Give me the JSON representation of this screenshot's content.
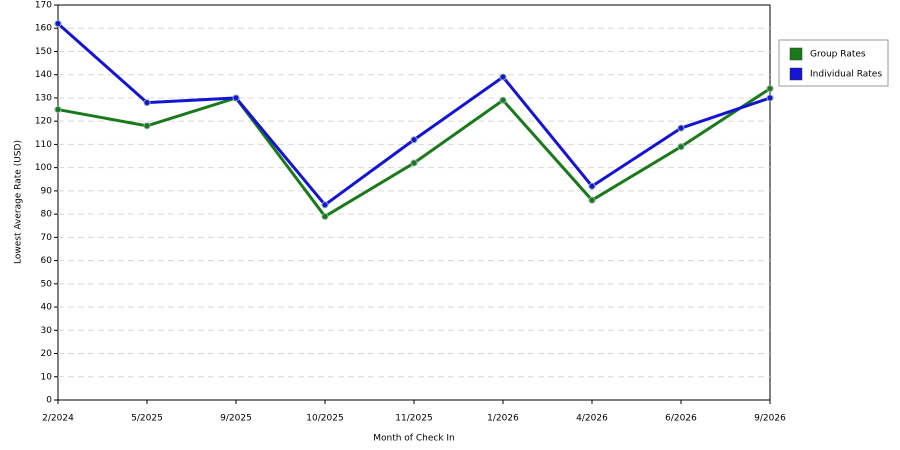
{
  "chart_data": {
    "type": "line",
    "x_label": "Month of Check In",
    "y_label": "Lowest Average Rate (USD)",
    "categories": [
      "2/2024",
      "5/2025",
      "9/2025",
      "10/2025",
      "11/2025",
      "1/2026",
      "4/2026",
      "6/2026",
      "9/2026"
    ],
    "series": [
      {
        "name": "Group Rates",
        "color": "#1a7a1a",
        "values": [
          125,
          118,
          130,
          79,
          102,
          129,
          86,
          109,
          134
        ]
      },
      {
        "name": "Individual Rates",
        "color": "#1414d2",
        "values": [
          162,
          128,
          130,
          84,
          112,
          139,
          92,
          117,
          130
        ]
      }
    ],
    "ylim": [
      0,
      170
    ],
    "yticks": [
      0,
      10,
      20,
      30,
      40,
      50,
      60,
      70,
      80,
      90,
      100,
      110,
      120,
      130,
      140,
      150,
      160,
      170
    ],
    "grid": true,
    "legend": "right"
  }
}
